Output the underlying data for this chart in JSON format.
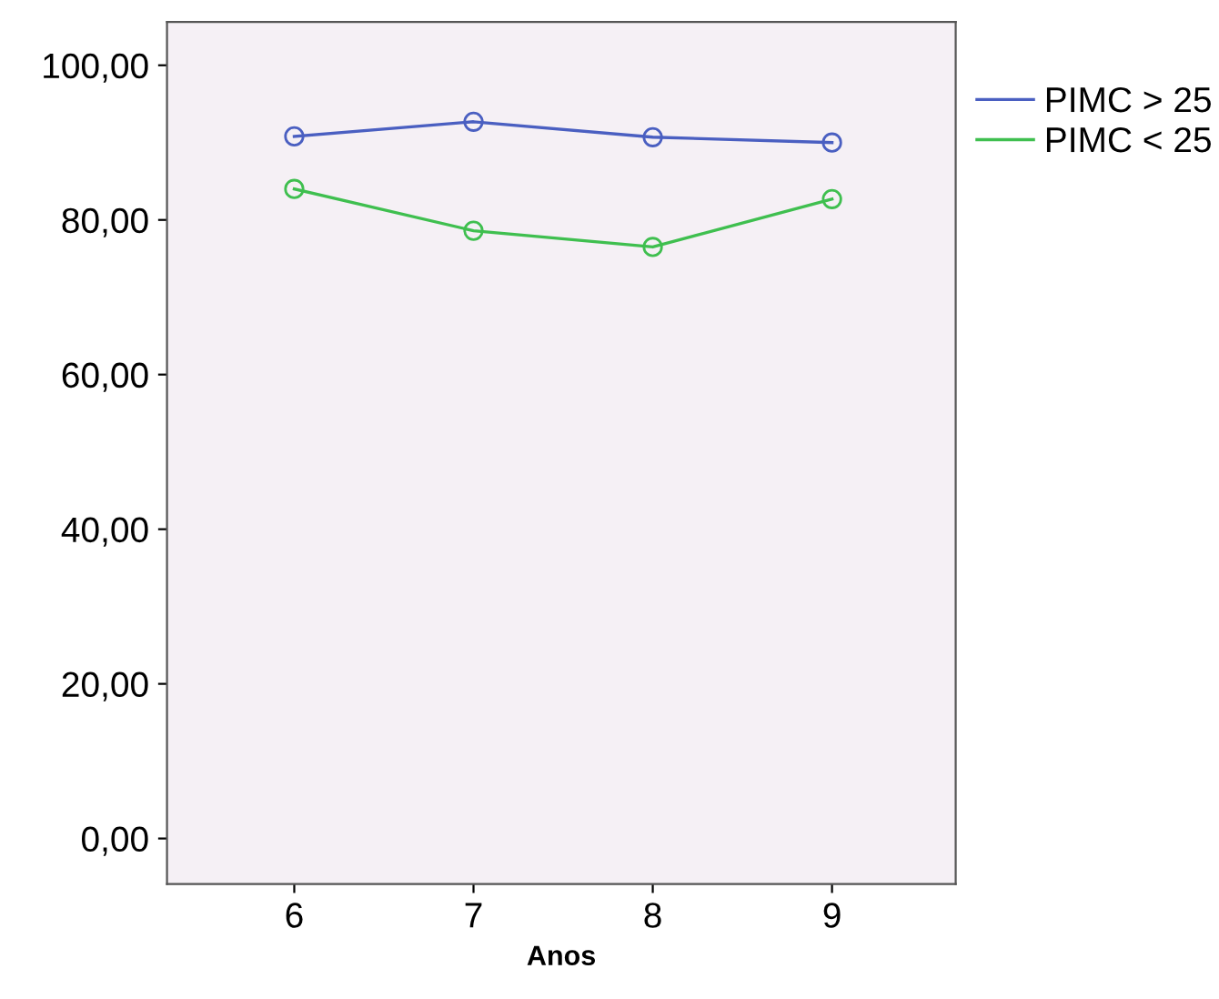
{
  "chart_data": {
    "type": "line",
    "xlabel": "Anos",
    "categories": [
      "6",
      "7",
      "8",
      "9"
    ],
    "series": [
      {
        "name": "PIMC > 25",
        "color": "#4a5fc1",
        "values": [
          90.8,
          92.7,
          90.7,
          90.0
        ]
      },
      {
        "name": "PIMC < 25",
        "color": "#3fbf4f",
        "values": [
          84.0,
          78.6,
          76.5,
          82.7
        ]
      }
    ],
    "ylim": [
      -5.9,
      105.6
    ],
    "yticks": [
      {
        "value": 0,
        "label": "0,00"
      },
      {
        "value": 20,
        "label": "20,00"
      },
      {
        "value": 40,
        "label": "40,00"
      },
      {
        "value": 60,
        "label": "60,00"
      },
      {
        "value": 80,
        "label": "80,00"
      },
      {
        "value": 100,
        "label": "100,00"
      }
    ],
    "marker": "circle",
    "line_style": "solid",
    "legend": "right",
    "grid": false
  }
}
